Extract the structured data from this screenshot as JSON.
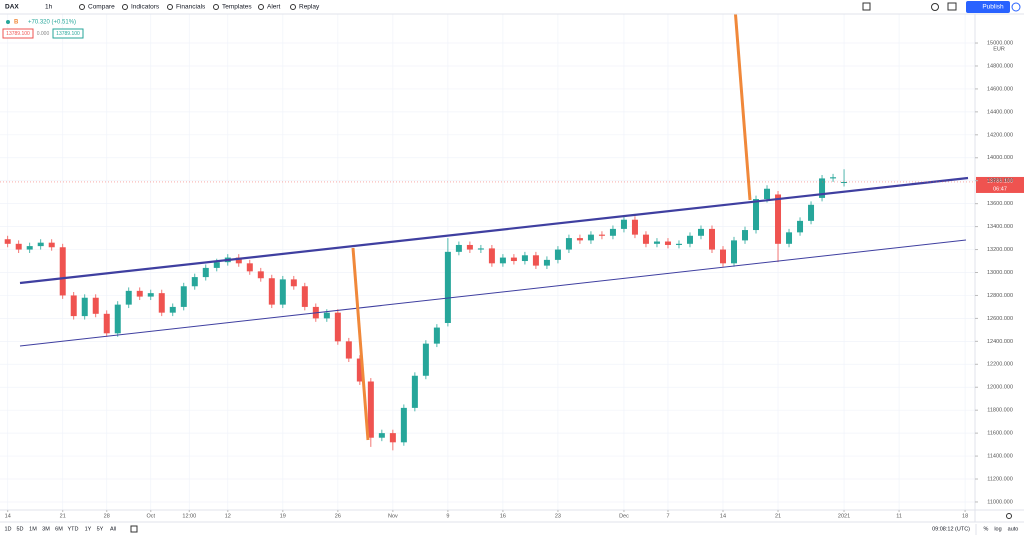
{
  "toolbar": {
    "symbol": "DAX",
    "interval": "1h",
    "buttons": [
      "Compare",
      "Indicators",
      "Financials",
      "Templates",
      "Alert",
      "Replay"
    ],
    "publish": "Publish"
  },
  "legend": {
    "marker": "B",
    "change": "+70.320 (+0.51%)",
    "bid": "13789.100",
    "spread": "0.000",
    "ask": "13789.100"
  },
  "chart_data": {
    "type": "candlestick",
    "x": [
      0,
      1,
      2,
      3,
      4,
      5,
      6,
      7,
      8,
      9,
      10,
      11,
      12,
      13,
      14,
      15,
      16,
      17,
      18,
      19,
      20,
      21,
      22,
      23,
      24,
      25,
      26,
      27,
      28,
      29,
      30,
      31,
      32,
      33,
      34,
      35,
      36,
      37,
      38,
      39,
      40,
      41,
      42,
      43,
      44,
      45,
      46,
      47,
      48,
      49,
      50,
      51,
      52,
      53,
      54,
      55,
      56,
      57,
      58,
      59,
      60,
      61,
      62,
      63,
      64,
      65,
      66,
      67,
      68,
      69,
      70,
      71,
      72,
      73,
      74,
      75,
      76
    ],
    "open": [
      13290,
      13250,
      13200,
      13230,
      13260,
      13220,
      12800,
      12620,
      12780,
      12640,
      12470,
      12720,
      12840,
      12790,
      12820,
      12650,
      12700,
      12880,
      12960,
      13040,
      13090,
      13130,
      13080,
      13010,
      12950,
      12720,
      12940,
      12880,
      12700,
      12600,
      12650,
      12400,
      12250,
      12050,
      11560,
      11600,
      11520,
      11820,
      12100,
      12380,
      12560,
      13180,
      13240,
      13200,
      13210,
      13080,
      13130,
      13100,
      13150,
      13060,
      13110,
      13200,
      13300,
      13280,
      13330,
      13320,
      13380,
      13460,
      13330,
      13250,
      13270,
      13240,
      13250,
      13320,
      13380,
      13200,
      13080,
      13280,
      13370,
      13640,
      13680,
      13250,
      13350,
      13450,
      13650,
      13820,
      13780
    ],
    "high": [
      13320,
      13280,
      13260,
      13290,
      13290,
      13250,
      12830,
      12810,
      12810,
      12670,
      12750,
      12870,
      12870,
      12850,
      12850,
      12730,
      12910,
      12990,
      13070,
      13120,
      13160,
      13160,
      13110,
      13040,
      12980,
      12970,
      12970,
      12910,
      12730,
      12680,
      12680,
      12430,
      12280,
      12080,
      11630,
      11630,
      11850,
      12130,
      12410,
      12550,
      13300,
      13270,
      13270,
      13240,
      13240,
      13160,
      13160,
      13180,
      13180,
      13140,
      13230,
      13330,
      13330,
      13360,
      13360,
      13410,
      13490,
      13490,
      13360,
      13300,
      13300,
      13280,
      13350,
      13410,
      13410,
      13230,
      13310,
      13400,
      13670,
      13760,
      13710,
      13380,
      13480,
      13620,
      13850,
      13860,
      13900
    ],
    "low": [
      13220,
      13170,
      13170,
      13200,
      13190,
      12770,
      12590,
      12590,
      12610,
      12440,
      12440,
      12690,
      12760,
      12760,
      12620,
      12620,
      12670,
      12850,
      12930,
      13010,
      13060,
      13050,
      12980,
      12920,
      12690,
      12690,
      12850,
      12670,
      12570,
      12570,
      12370,
      12220,
      12020,
      11480,
      11530,
      11450,
      11490,
      11790,
      12070,
      12350,
      12530,
      13150,
      13170,
      13170,
      13050,
      13050,
      13070,
      13070,
      13030,
      13030,
      13080,
      13170,
      13250,
      13250,
      13290,
      13290,
      13350,
      13300,
      13220,
      13220,
      13210,
      13210,
      13220,
      13290,
      13170,
      13050,
      13050,
      13250,
      13340,
      13610,
      13090,
      13220,
      13320,
      13420,
      13620,
      13790,
      13750
    ],
    "close": [
      13250,
      13200,
      13230,
      13260,
      13220,
      12800,
      12620,
      12780,
      12640,
      12470,
      12720,
      12840,
      12790,
      12820,
      12650,
      12700,
      12880,
      12960,
      13040,
      13090,
      13130,
      13080,
      13010,
      12950,
      12720,
      12940,
      12880,
      12700,
      12600,
      12650,
      12400,
      12250,
      12050,
      11560,
      11600,
      11520,
      11820,
      12100,
      12380,
      12520,
      13180,
      13240,
      13200,
      13210,
      13080,
      13130,
      13100,
      13150,
      13060,
      13110,
      13200,
      13300,
      13280,
      13330,
      13320,
      13380,
      13460,
      13330,
      13250,
      13270,
      13240,
      13250,
      13320,
      13380,
      13200,
      13080,
      13280,
      13370,
      13640,
      13730,
      13250,
      13350,
      13450,
      13590,
      13820,
      13830,
      13789.1
    ],
    "up_color": "#26a69a",
    "down_color": "#ef5350",
    "xlim": [
      -0.7,
      87.9
    ],
    "xticks": [
      {
        "value": 0,
        "label": "14"
      },
      {
        "value": 5,
        "label": "21"
      },
      {
        "value": 9,
        "label": "28"
      },
      {
        "value": 13,
        "label": "Oct"
      },
      {
        "value": 16.5,
        "label": "12:00"
      },
      {
        "value": 20,
        "label": "12"
      },
      {
        "value": 25,
        "label": "19"
      },
      {
        "value": 30,
        "label": "26"
      },
      {
        "value": 35,
        "label": "Nov"
      },
      {
        "value": 40,
        "label": "9"
      },
      {
        "value": 45,
        "label": "16"
      },
      {
        "value": 50,
        "label": "23"
      },
      {
        "value": 56,
        "label": "Dec"
      },
      {
        "value": 60,
        "label": "7"
      },
      {
        "value": 65,
        "label": "14"
      },
      {
        "value": 70,
        "label": "21"
      },
      {
        "value": 76,
        "label": "2021"
      },
      {
        "value": 81,
        "label": "11"
      },
      {
        "value": 87,
        "label": "18"
      }
    ],
    "ylim": [
      10930,
      15253
    ],
    "yticks": [
      {
        "value": 11000,
        "label": "11000.000"
      },
      {
        "value": 11200,
        "label": "11200.000"
      },
      {
        "value": 11400,
        "label": "11400.000"
      },
      {
        "value": 11600,
        "label": "11600.000"
      },
      {
        "value": 11800,
        "label": "11800.000"
      },
      {
        "value": 12000,
        "label": "12000.000"
      },
      {
        "value": 12200,
        "label": "12200.000"
      },
      {
        "value": 12400,
        "label": "12400.000"
      },
      {
        "value": 12600,
        "label": "12600.000"
      },
      {
        "value": 12800,
        "label": "12800.000"
      },
      {
        "value": 13000,
        "label": "13000.000"
      },
      {
        "value": 13200,
        "label": "13200.000"
      },
      {
        "value": 13400,
        "label": "13400.000"
      },
      {
        "value": 13600,
        "label": "13600.000"
      },
      {
        "value": 13800,
        "label": "13800.000"
      },
      {
        "value": 14000,
        "label": "14000.000"
      },
      {
        "value": 14200,
        "label": "14200.000"
      },
      {
        "value": 14400,
        "label": "14400.000"
      },
      {
        "value": 14600,
        "label": "14600.000"
      },
      {
        "value": 14800,
        "label": "14800.000"
      },
      {
        "value": 15000,
        "label": "15000.000"
      }
    ],
    "currency": "EUR",
    "last_price": {
      "value": 13789.1,
      "label": "13789.100"
    },
    "countdown": "06:47",
    "grid": true
  },
  "bottom_bar": {
    "ranges": [
      "1D",
      "5D",
      "1M",
      "3M",
      "6M",
      "YTD",
      "1Y",
      "5Y",
      "All"
    ],
    "clock": "09:08:12 (UTC)",
    "options": [
      "%",
      "log",
      "auto"
    ]
  }
}
